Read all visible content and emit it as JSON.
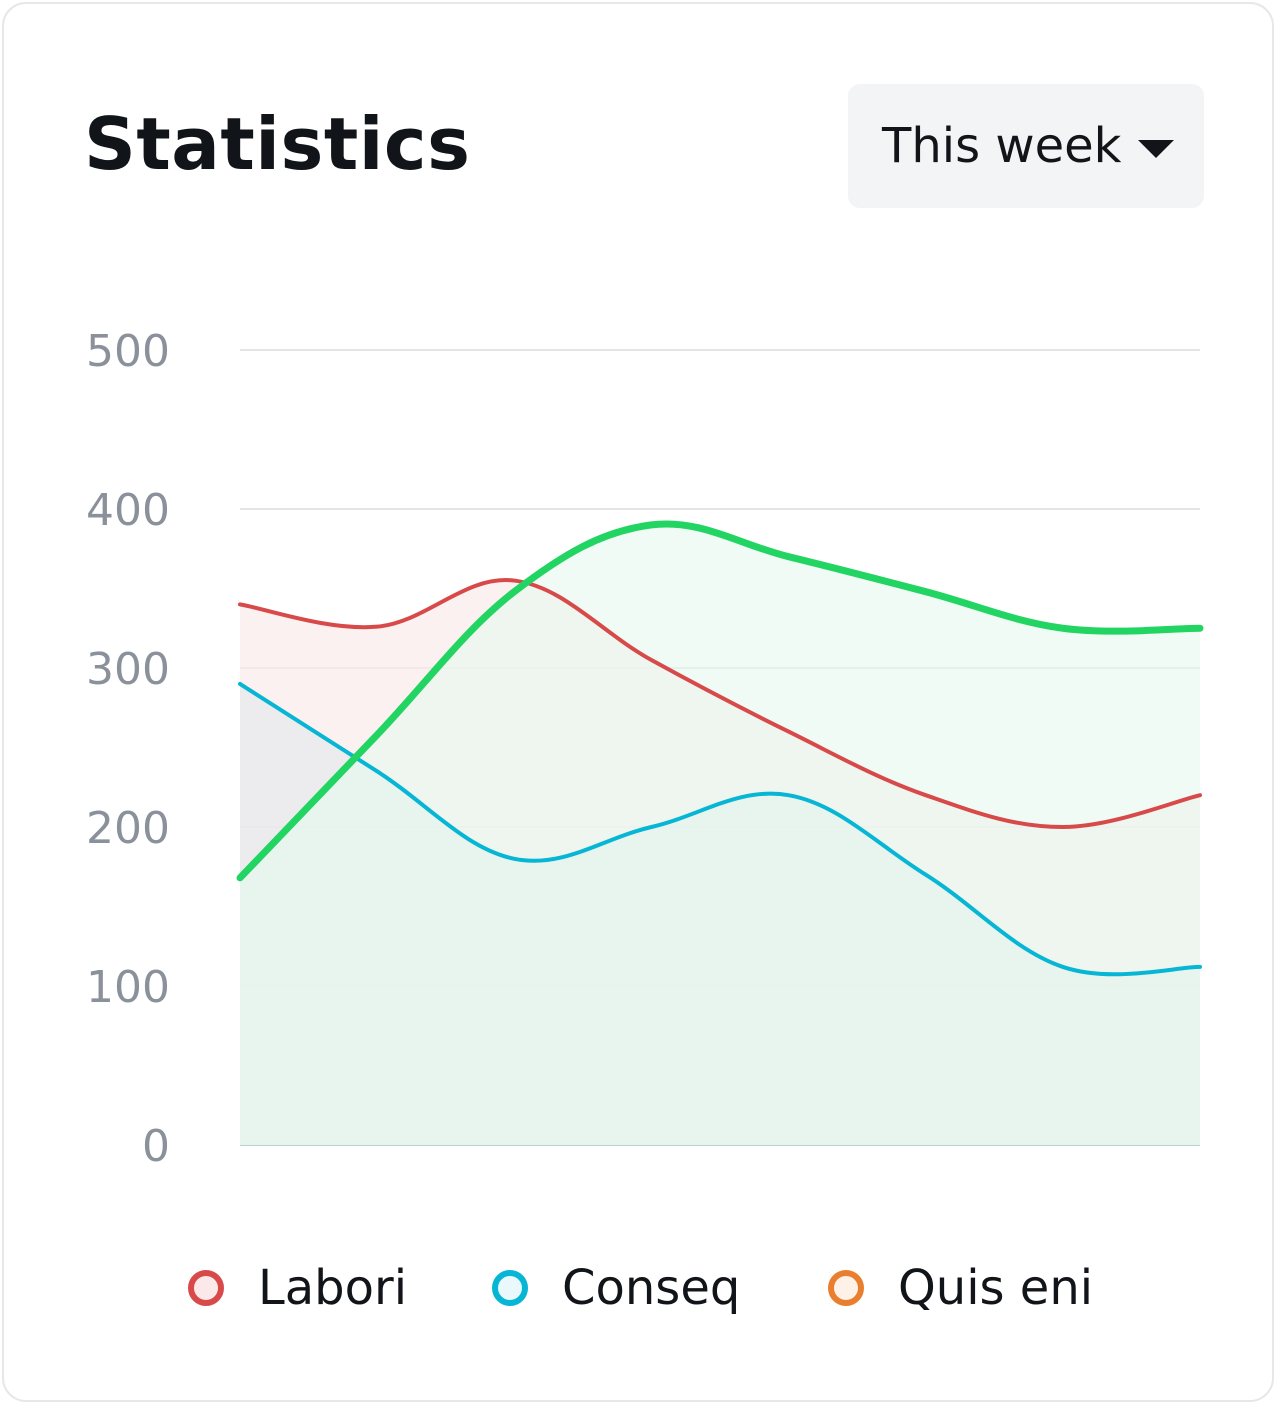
{
  "header": {
    "title": "Statistics",
    "period_select": {
      "value": "This week"
    }
  },
  "chart_data": {
    "type": "area",
    "title": "Statistics",
    "xlabel": "",
    "ylabel": "",
    "ylim": [
      0,
      500
    ],
    "yticks": [
      500,
      400,
      300,
      200,
      100,
      0
    ],
    "grid": true,
    "legend_position": "bottom",
    "x": [
      0,
      1,
      2,
      3,
      4,
      5,
      6,
      7
    ],
    "series": [
      {
        "name": "Labori",
        "color": "#d84a4a",
        "fill": "#fbe9e9",
        "line_width": 4,
        "values": [
          340,
          326,
          355,
          305,
          260,
          220,
          200,
          220
        ]
      },
      {
        "name": "Conseq",
        "color": "#06b6d4",
        "fill": "#e4e9ec",
        "line_width": 4,
        "values": [
          290,
          235,
          180,
          200,
          220,
          170,
          112,
          112
        ]
      },
      {
        "name": "Quis eni",
        "color": "#22d462",
        "fill": "#e6f9ee",
        "line_width": 7,
        "legend_color": "#e97f2e",
        "values": [
          168,
          258,
          348,
          390,
          370,
          348,
          325,
          325
        ]
      }
    ]
  },
  "legend": {
    "items": [
      {
        "label": "Labori",
        "color": "#d84a4a"
      },
      {
        "label": "Conseq",
        "color": "#06b6d4"
      },
      {
        "label": "Quis eni",
        "color": "#e97f2e"
      }
    ]
  }
}
